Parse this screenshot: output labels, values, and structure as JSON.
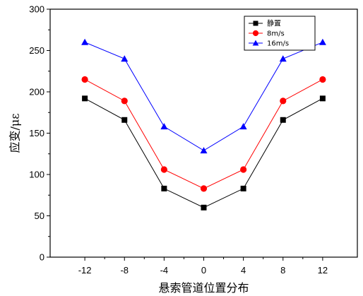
{
  "chart_data": {
    "type": "line",
    "title": "",
    "xlabel": "悬索管道位置分布",
    "ylabel": "应变/με",
    "x": [
      -12,
      -8,
      -4,
      0,
      4,
      8,
      12
    ],
    "xticks": [
      "-12",
      "-8",
      "-4",
      "0",
      "4",
      "8",
      "12"
    ],
    "xlim": [
      -15.5,
      15.5
    ],
    "ylim": [
      0,
      300
    ],
    "yticks": [
      "0",
      "50",
      "100",
      "150",
      "200",
      "250",
      "300"
    ],
    "grid": false,
    "legend": "top-right",
    "series": [
      {
        "name": "静置",
        "marker": "square",
        "color": "#000000",
        "values": [
          192,
          166,
          83,
          60,
          83,
          166,
          192
        ]
      },
      {
        "name": "8m/s",
        "marker": "circle",
        "color": "#ff0000",
        "values": [
          215,
          189,
          106,
          83,
          106,
          189,
          215
        ]
      },
      {
        "name": "16m/s",
        "marker": "triangle",
        "color": "#0000ff",
        "values": [
          260,
          240,
          158,
          129,
          158,
          240,
          260
        ]
      }
    ]
  }
}
